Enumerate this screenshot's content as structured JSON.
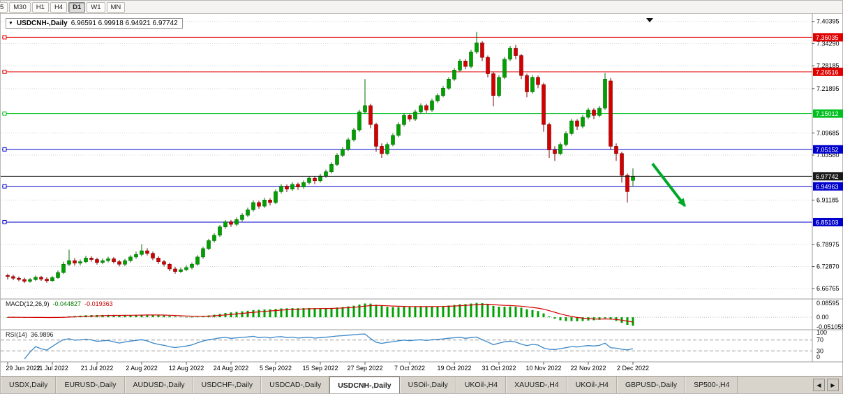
{
  "toolbar": {
    "timeframes": [
      {
        "label": "5",
        "active": false
      },
      {
        "label": "M30",
        "active": false
      },
      {
        "label": "H1",
        "active": false
      },
      {
        "label": "H4",
        "active": false
      },
      {
        "label": "D1",
        "active": true
      },
      {
        "label": "W1",
        "active": false
      },
      {
        "label": "MN",
        "active": false
      }
    ]
  },
  "title_bar": {
    "symbol": "USDCNH-,Daily",
    "ohlc": "6.96591 6.99918 6.94921 6.97742"
  },
  "indicators": {
    "macd": {
      "label": "MACD(12,26,9)",
      "value": "-0.044827",
      "signal": "-0.019363",
      "axis_labels": [
        "0.08595",
        "0.00",
        "-0.051055"
      ]
    },
    "rsi": {
      "label": "RSI(14)",
      "value": "36.9896",
      "axis_labels": [
        "100",
        "70",
        "30",
        "0"
      ]
    }
  },
  "colors": {
    "up": "#00a000",
    "up_stroke": "#006c00",
    "down": "#d40000",
    "down_stroke": "#7c0000",
    "line_red": "#e00000",
    "line_green": "#00c020",
    "line_blue": "#0000cc",
    "price_black": "#1a1a1a",
    "macd_hist": "#00a000",
    "macd_signal": "#d40000",
    "rsi_line": "#3a87c8",
    "arrow": "#00a82a",
    "grid": "#d6d6d6",
    "axis_text": "#000000"
  },
  "tabs": {
    "items": [
      {
        "label": "USDX,Daily",
        "active": false
      },
      {
        "label": "EURUSD-,Daily",
        "active": false
      },
      {
        "label": "AUDUSD-,Daily",
        "active": false
      },
      {
        "label": "USDCHF-,Daily",
        "active": false
      },
      {
        "label": "USDCAD-,Daily",
        "active": false
      },
      {
        "label": "USDCNH-,Daily",
        "active": true
      },
      {
        "label": "USOil-,Daily",
        "active": false
      },
      {
        "label": "UKOil-,H4",
        "active": false
      },
      {
        "label": "XAUUSD-,H4",
        "active": false
      },
      {
        "label": "UKOil-,H4",
        "active": false
      },
      {
        "label": "GBPUSD-,Daily",
        "active": false
      },
      {
        "label": "SP500-,H4",
        "active": false
      }
    ],
    "scroll_left": "◀",
    "scroll_right": "▶"
  },
  "chart_data": {
    "type": "candlestick",
    "symbol": "USDCNH-",
    "timeframe": "Daily",
    "last_ohlc": {
      "open": 6.96591,
      "high": 6.99918,
      "low": 6.94921,
      "close": 6.97742
    },
    "y_range": [
      6.645,
      7.415
    ],
    "price_axis_plain": [
      7.40395,
      7.3429,
      7.28185,
      7.21895,
      7.09685,
      7.0358,
      6.91185,
      6.78975,
      6.7287,
      6.66765
    ],
    "current_price": 6.97742,
    "horizontal_lines": [
      {
        "price": 7.36035,
        "color": "#e00000"
      },
      {
        "price": 7.26516,
        "color": "#e00000"
      },
      {
        "price": 7.15012,
        "color": "#00c020"
      },
      {
        "price": 7.05152,
        "color": "#0000cc"
      },
      {
        "price": 6.94963,
        "color": "#0000cc"
      },
      {
        "price": 6.85103,
        "color": "#0000cc"
      }
    ],
    "trend_arrow": {
      "from_bar": 115.5,
      "from_price": 7.012,
      "to_bar": 121.3,
      "to_price": 6.896
    },
    "shift_marker_bar": 115,
    "x_labels": [
      "29 Jun 2022",
      "11 Jul 2022",
      "21 Jul 2022",
      "2 Aug 2022",
      "12 Aug 2022",
      "24 Aug 2022",
      "5 Sep 2022",
      "15 Sep 2022",
      "27 Sep 2022",
      "7 Oct 2022",
      "19 Oct 2022",
      "31 Oct 2022",
      "10 Nov 2022",
      "22 Nov 2022",
      "2 Dec 2022"
    ],
    "x_label_indices": [
      0,
      8,
      16,
      24,
      32,
      40,
      48,
      56,
      64,
      72,
      80,
      88,
      96,
      104,
      112
    ],
    "macd": {
      "fast": 12,
      "slow": 26,
      "signal": 9,
      "current": -0.044827,
      "current_signal": -0.019363,
      "axis_max": 0.08595,
      "axis_min": -0.051055
    },
    "rsi": {
      "period": 14,
      "current": 36.9896,
      "levels": [
        70,
        30
      ]
    },
    "candles": [
      [
        6.704,
        6.709,
        6.693,
        6.701
      ],
      [
        6.701,
        6.706,
        6.691,
        6.6965
      ],
      [
        6.6965,
        6.701,
        6.688,
        6.693
      ],
      [
        6.693,
        6.698,
        6.683,
        6.688
      ],
      [
        6.688,
        6.697,
        6.684,
        6.6925
      ],
      [
        6.6925,
        6.704,
        6.689,
        6.699
      ],
      [
        6.699,
        6.703,
        6.689,
        6.694
      ],
      [
        6.694,
        6.699,
        6.684,
        6.6895
      ],
      [
        6.6895,
        6.703,
        6.687,
        6.698
      ],
      [
        6.698,
        6.718,
        6.695,
        6.712
      ],
      [
        6.712,
        6.742,
        6.708,
        6.735
      ],
      [
        6.735,
        6.775,
        6.73,
        6.745
      ],
      [
        6.745,
        6.752,
        6.731,
        6.738
      ],
      [
        6.738,
        6.748,
        6.732,
        6.742
      ],
      [
        6.742,
        6.758,
        6.738,
        6.752
      ],
      [
        6.752,
        6.757,
        6.742,
        6.748
      ],
      [
        6.748,
        6.753,
        6.734,
        6.74
      ],
      [
        6.74,
        6.751,
        6.735,
        6.745
      ],
      [
        6.745,
        6.756,
        6.74,
        6.75
      ],
      [
        6.75,
        6.755,
        6.737,
        6.742
      ],
      [
        6.742,
        6.747,
        6.729,
        6.735
      ],
      [
        6.735,
        6.75,
        6.73,
        6.745
      ],
      [
        6.745,
        6.76,
        6.74,
        6.755
      ],
      [
        6.755,
        6.77,
        6.75,
        6.762
      ],
      [
        6.762,
        6.79,
        6.757,
        6.772
      ],
      [
        6.772,
        6.779,
        6.759,
        6.765
      ],
      [
        6.765,
        6.77,
        6.746,
        6.752
      ],
      [
        6.752,
        6.757,
        6.736,
        6.742
      ],
      [
        6.742,
        6.747,
        6.729,
        6.735
      ],
      [
        6.735,
        6.739,
        6.716,
        6.722
      ],
      [
        6.722,
        6.728,
        6.709,
        6.715
      ],
      [
        6.715,
        6.726,
        6.711,
        6.72
      ],
      [
        6.72,
        6.732,
        6.716,
        6.726
      ],
      [
        6.726,
        6.74,
        6.721,
        6.735
      ],
      [
        6.735,
        6.76,
        6.731,
        6.755
      ],
      [
        6.755,
        6.783,
        6.75,
        6.778
      ],
      [
        6.778,
        6.805,
        6.774,
        6.8
      ],
      [
        6.8,
        6.821,
        6.795,
        6.815
      ],
      [
        6.815,
        6.843,
        6.81,
        6.838
      ],
      [
        6.838,
        6.857,
        6.833,
        6.852
      ],
      [
        6.852,
        6.857,
        6.838,
        6.845
      ],
      [
        6.845,
        6.864,
        6.84,
        6.858
      ],
      [
        6.858,
        6.876,
        6.853,
        6.87
      ],
      [
        6.87,
        6.891,
        6.865,
        6.885
      ],
      [
        6.885,
        6.911,
        6.88,
        6.905
      ],
      [
        6.905,
        6.91,
        6.888,
        6.895
      ],
      [
        6.895,
        6.918,
        6.89,
        6.912
      ],
      [
        6.912,
        6.917,
        6.897,
        6.905
      ],
      [
        6.905,
        6.941,
        6.901,
        6.935
      ],
      [
        6.935,
        6.956,
        6.93,
        6.95
      ],
      [
        6.95,
        6.955,
        6.934,
        6.942
      ],
      [
        6.942,
        6.961,
        6.937,
        6.955
      ],
      [
        6.955,
        6.96,
        6.94,
        6.948
      ],
      [
        6.948,
        6.966,
        6.943,
        6.96
      ],
      [
        6.96,
        6.978,
        6.955,
        6.972
      ],
      [
        6.972,
        6.977,
        6.956,
        6.965
      ],
      [
        6.965,
        6.984,
        6.96,
        6.978
      ],
      [
        6.978,
        6.996,
        6.973,
        6.99
      ],
      [
        6.99,
        7.016,
        6.985,
        7.01
      ],
      [
        7.01,
        7.041,
        7.005,
        7.035
      ],
      [
        7.035,
        7.058,
        7.03,
        7.052
      ],
      [
        7.052,
        7.084,
        7.047,
        7.078
      ],
      [
        7.078,
        7.111,
        7.073,
        7.105
      ],
      [
        7.105,
        7.161,
        7.1,
        7.155
      ],
      [
        7.155,
        7.245,
        7.15,
        7.172
      ],
      [
        7.172,
        7.177,
        7.11,
        7.12
      ],
      [
        7.12,
        7.125,
        7.045,
        7.06
      ],
      [
        7.06,
        7.068,
        7.028,
        7.04
      ],
      [
        7.04,
        7.071,
        7.035,
        7.065
      ],
      [
        7.065,
        7.096,
        7.06,
        7.09
      ],
      [
        7.09,
        7.126,
        7.085,
        7.12
      ],
      [
        7.12,
        7.151,
        7.115,
        7.145
      ],
      [
        7.145,
        7.15,
        7.128,
        7.135
      ],
      [
        7.135,
        7.161,
        7.13,
        7.155
      ],
      [
        7.155,
        7.178,
        7.15,
        7.172
      ],
      [
        7.172,
        7.177,
        7.152,
        7.16
      ],
      [
        7.16,
        7.191,
        7.155,
        7.185
      ],
      [
        7.185,
        7.206,
        7.18,
        7.2
      ],
      [
        7.2,
        7.226,
        7.195,
        7.22
      ],
      [
        7.22,
        7.251,
        7.215,
        7.245
      ],
      [
        7.245,
        7.276,
        7.24,
        7.27
      ],
      [
        7.27,
        7.301,
        7.265,
        7.295
      ],
      [
        7.295,
        7.3,
        7.272,
        7.28
      ],
      [
        7.28,
        7.326,
        7.275,
        7.32
      ],
      [
        7.32,
        7.375,
        7.315,
        7.345
      ],
      [
        7.345,
        7.35,
        7.295,
        7.305
      ],
      [
        7.305,
        7.31,
        7.25,
        7.26
      ],
      [
        7.26,
        7.265,
        7.17,
        7.2
      ],
      [
        7.2,
        7.256,
        7.195,
        7.25
      ],
      [
        7.25,
        7.306,
        7.245,
        7.3
      ],
      [
        7.3,
        7.336,
        7.295,
        7.33
      ],
      [
        7.33,
        7.34,
        7.3,
        7.31
      ],
      [
        7.31,
        7.315,
        7.245,
        7.255
      ],
      [
        7.255,
        7.26,
        7.195,
        7.21
      ],
      [
        7.21,
        7.256,
        7.205,
        7.25
      ],
      [
        7.25,
        7.255,
        7.22,
        7.23
      ],
      [
        7.23,
        7.235,
        7.1,
        7.12
      ],
      [
        7.12,
        7.125,
        7.028,
        7.05
      ],
      [
        7.05,
        7.06,
        7.02,
        7.04
      ],
      [
        7.04,
        7.071,
        7.035,
        7.065
      ],
      [
        7.065,
        7.101,
        7.06,
        7.095
      ],
      [
        7.095,
        7.136,
        7.09,
        7.13
      ],
      [
        7.13,
        7.135,
        7.105,
        7.115
      ],
      [
        7.115,
        7.146,
        7.11,
        7.14
      ],
      [
        7.14,
        7.166,
        7.135,
        7.16
      ],
      [
        7.16,
        7.165,
        7.135,
        7.145
      ],
      [
        7.145,
        7.171,
        7.14,
        7.165
      ],
      [
        7.165,
        7.262,
        7.16,
        7.245
      ],
      [
        7.24,
        7.248,
        7.05,
        7.06
      ],
      [
        7.06,
        7.068,
        7.02,
        7.04
      ],
      [
        7.04,
        7.045,
        6.96,
        6.98
      ],
      [
        6.98,
        6.985,
        6.905,
        6.935
      ],
      [
        6.96591,
        6.99918,
        6.94921,
        6.97742
      ]
    ]
  }
}
